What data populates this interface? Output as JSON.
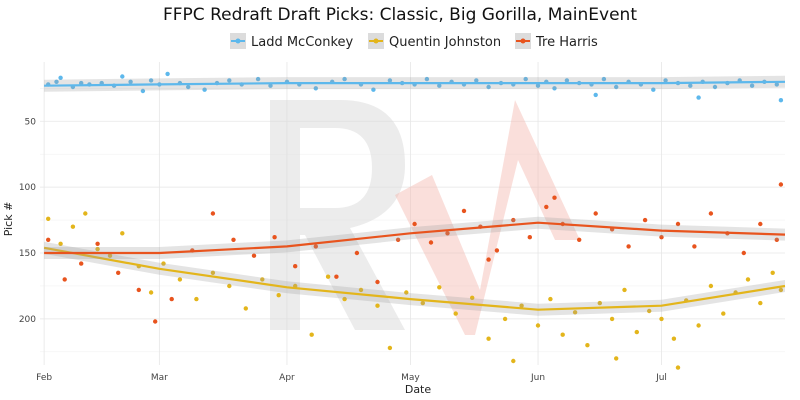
{
  "chart_data": {
    "type": "scatter",
    "title": "FFPC Redraft Draft Picks: Classic, Big Gorilla, MainEvent",
    "xlabel": "Date",
    "ylabel": "Pick #",
    "x_ticks": [
      "Feb",
      "Mar",
      "Apr",
      "May",
      "Jun",
      "Jul"
    ],
    "y_ticks": [
      50,
      100,
      150,
      200
    ],
    "xlim": [
      "2025-01-31",
      "2025-07-31"
    ],
    "ylim": [
      235,
      5
    ],
    "y_reversed": true,
    "grid": true,
    "legend_position": "top",
    "watermark": "RA",
    "series": [
      {
        "name": "Ladd McConkey",
        "color": "#5DB8EC",
        "trend": [
          [
            "2025-02-01",
            23
          ],
          [
            "2025-03-01",
            22
          ],
          [
            "2025-04-01",
            21
          ],
          [
            "2025-05-01",
            21
          ],
          [
            "2025-06-01",
            21
          ],
          [
            "2025-07-01",
            21
          ],
          [
            "2025-07-31",
            20
          ]
        ],
        "points": [
          [
            "2025-02-02",
            22
          ],
          [
            "2025-02-04",
            20
          ],
          [
            "2025-02-05",
            17
          ],
          [
            "2025-02-08",
            24
          ],
          [
            "2025-02-10",
            21
          ],
          [
            "2025-02-12",
            22
          ],
          [
            "2025-02-15",
            21
          ],
          [
            "2025-02-18",
            23
          ],
          [
            "2025-02-20",
            16
          ],
          [
            "2025-02-22",
            20
          ],
          [
            "2025-02-25",
            27
          ],
          [
            "2025-02-27",
            19
          ],
          [
            "2025-03-01",
            22
          ],
          [
            "2025-03-03",
            14
          ],
          [
            "2025-03-06",
            21
          ],
          [
            "2025-03-08",
            24
          ],
          [
            "2025-03-12",
            26
          ],
          [
            "2025-03-15",
            21
          ],
          [
            "2025-03-18",
            19
          ],
          [
            "2025-03-21",
            22
          ],
          [
            "2025-03-25",
            18
          ],
          [
            "2025-03-28",
            23
          ],
          [
            "2025-04-01",
            20
          ],
          [
            "2025-04-04",
            22
          ],
          [
            "2025-04-08",
            25
          ],
          [
            "2025-04-12",
            20
          ],
          [
            "2025-04-15",
            18
          ],
          [
            "2025-04-19",
            22
          ],
          [
            "2025-04-22",
            26
          ],
          [
            "2025-04-26",
            19
          ],
          [
            "2025-04-29",
            21
          ],
          [
            "2025-05-02",
            22
          ],
          [
            "2025-05-05",
            18
          ],
          [
            "2025-05-08",
            23
          ],
          [
            "2025-05-11",
            20
          ],
          [
            "2025-05-14",
            22
          ],
          [
            "2025-05-17",
            19
          ],
          [
            "2025-05-20",
            24
          ],
          [
            "2025-05-23",
            21
          ],
          [
            "2025-05-26",
            22
          ],
          [
            "2025-05-29",
            18
          ],
          [
            "2025-06-01",
            23
          ],
          [
            "2025-06-03",
            20
          ],
          [
            "2025-06-05",
            25
          ],
          [
            "2025-06-08",
            19
          ],
          [
            "2025-06-11",
            21
          ],
          [
            "2025-06-14",
            22
          ],
          [
            "2025-06-17",
            18
          ],
          [
            "2025-06-20",
            24
          ],
          [
            "2025-06-23",
            20
          ],
          [
            "2025-06-26",
            22
          ],
          [
            "2025-06-29",
            26
          ],
          [
            "2025-07-02",
            19
          ],
          [
            "2025-07-05",
            21
          ],
          [
            "2025-07-08",
            23
          ],
          [
            "2025-07-11",
            20
          ],
          [
            "2025-07-14",
            24
          ],
          [
            "2025-07-17",
            21
          ],
          [
            "2025-07-20",
            19
          ],
          [
            "2025-07-23",
            23
          ],
          [
            "2025-07-26",
            20
          ],
          [
            "2025-07-29",
            22
          ],
          [
            "2025-07-30",
            34
          ],
          [
            "2025-06-15",
            30
          ],
          [
            "2025-07-10",
            32
          ]
        ]
      },
      {
        "name": "Quentin Johnston",
        "color": "#E3B51B",
        "trend": [
          [
            "2025-02-01",
            146
          ],
          [
            "2025-03-01",
            162
          ],
          [
            "2025-04-01",
            176
          ],
          [
            "2025-05-01",
            185
          ],
          [
            "2025-06-01",
            193
          ],
          [
            "2025-07-01",
            190
          ],
          [
            "2025-07-31",
            175
          ]
        ],
        "points": [
          [
            "2025-02-02",
            124
          ],
          [
            "2025-02-05",
            143
          ],
          [
            "2025-02-08",
            130
          ],
          [
            "2025-02-11",
            120
          ],
          [
            "2025-02-14",
            147
          ],
          [
            "2025-02-17",
            152
          ],
          [
            "2025-02-20",
            135
          ],
          [
            "2025-02-24",
            160
          ],
          [
            "2025-02-27",
            180
          ],
          [
            "2025-03-02",
            158
          ],
          [
            "2025-03-06",
            170
          ],
          [
            "2025-03-10",
            185
          ],
          [
            "2025-03-14",
            165
          ],
          [
            "2025-03-18",
            175
          ],
          [
            "2025-03-22",
            192
          ],
          [
            "2025-03-26",
            170
          ],
          [
            "2025-03-30",
            182
          ],
          [
            "2025-04-03",
            175
          ],
          [
            "2025-04-07",
            212
          ],
          [
            "2025-04-11",
            168
          ],
          [
            "2025-04-15",
            185
          ],
          [
            "2025-04-19",
            178
          ],
          [
            "2025-04-23",
            190
          ],
          [
            "2025-04-26",
            222
          ],
          [
            "2025-04-30",
            180
          ],
          [
            "2025-05-04",
            188
          ],
          [
            "2025-05-08",
            176
          ],
          [
            "2025-05-12",
            196
          ],
          [
            "2025-05-16",
            184
          ],
          [
            "2025-05-20",
            215
          ],
          [
            "2025-05-24",
            200
          ],
          [
            "2025-05-28",
            190
          ],
          [
            "2025-06-01",
            205
          ],
          [
            "2025-06-04",
            185
          ],
          [
            "2025-06-07",
            212
          ],
          [
            "2025-06-10",
            195
          ],
          [
            "2025-06-13",
            220
          ],
          [
            "2025-06-16",
            188
          ],
          [
            "2025-06-19",
            200
          ],
          [
            "2025-06-22",
            178
          ],
          [
            "2025-06-25",
            210
          ],
          [
            "2025-06-28",
            194
          ],
          [
            "2025-07-01",
            200
          ],
          [
            "2025-07-04",
            215
          ],
          [
            "2025-07-07",
            186
          ],
          [
            "2025-07-10",
            205
          ],
          [
            "2025-07-13",
            175
          ],
          [
            "2025-07-16",
            196
          ],
          [
            "2025-07-19",
            180
          ],
          [
            "2025-07-22",
            170
          ],
          [
            "2025-07-25",
            188
          ],
          [
            "2025-07-28",
            165
          ],
          [
            "2025-07-30",
            178
          ],
          [
            "2025-06-20",
            230
          ],
          [
            "2025-05-26",
            232
          ],
          [
            "2025-07-05",
            237
          ]
        ]
      },
      {
        "name": "Tre Harris",
        "color": "#E8541E",
        "trend": [
          [
            "2025-02-01",
            150
          ],
          [
            "2025-03-01",
            150
          ],
          [
            "2025-04-01",
            145
          ],
          [
            "2025-05-01",
            135
          ],
          [
            "2025-06-01",
            127
          ],
          [
            "2025-07-01",
            133
          ],
          [
            "2025-07-31",
            136
          ]
        ],
        "points": [
          [
            "2025-02-02",
            140
          ],
          [
            "2025-02-06",
            170
          ],
          [
            "2025-02-10",
            158
          ],
          [
            "2025-02-14",
            143
          ],
          [
            "2025-02-19",
            165
          ],
          [
            "2025-02-24",
            178
          ],
          [
            "2025-02-28",
            202
          ],
          [
            "2025-03-04",
            185
          ],
          [
            "2025-03-09",
            148
          ],
          [
            "2025-03-14",
            120
          ],
          [
            "2025-03-19",
            140
          ],
          [
            "2025-03-24",
            152
          ],
          [
            "2025-03-29",
            138
          ],
          [
            "2025-04-03",
            160
          ],
          [
            "2025-04-08",
            145
          ],
          [
            "2025-04-13",
            168
          ],
          [
            "2025-04-18",
            150
          ],
          [
            "2025-04-23",
            172
          ],
          [
            "2025-04-28",
            140
          ],
          [
            "2025-05-02",
            128
          ],
          [
            "2025-05-06",
            142
          ],
          [
            "2025-05-10",
            135
          ],
          [
            "2025-05-14",
            118
          ],
          [
            "2025-05-18",
            130
          ],
          [
            "2025-05-22",
            148
          ],
          [
            "2025-05-26",
            125
          ],
          [
            "2025-05-30",
            138
          ],
          [
            "2025-06-03",
            115
          ],
          [
            "2025-06-07",
            128
          ],
          [
            "2025-06-11",
            140
          ],
          [
            "2025-06-15",
            120
          ],
          [
            "2025-06-19",
            132
          ],
          [
            "2025-06-23",
            145
          ],
          [
            "2025-06-27",
            125
          ],
          [
            "2025-07-01",
            138
          ],
          [
            "2025-07-05",
            128
          ],
          [
            "2025-07-09",
            145
          ],
          [
            "2025-07-13",
            120
          ],
          [
            "2025-07-17",
            135
          ],
          [
            "2025-07-21",
            150
          ],
          [
            "2025-07-25",
            128
          ],
          [
            "2025-07-29",
            140
          ],
          [
            "2025-07-30",
            98
          ],
          [
            "2025-05-20",
            155
          ],
          [
            "2025-06-05",
            108
          ]
        ]
      }
    ]
  }
}
